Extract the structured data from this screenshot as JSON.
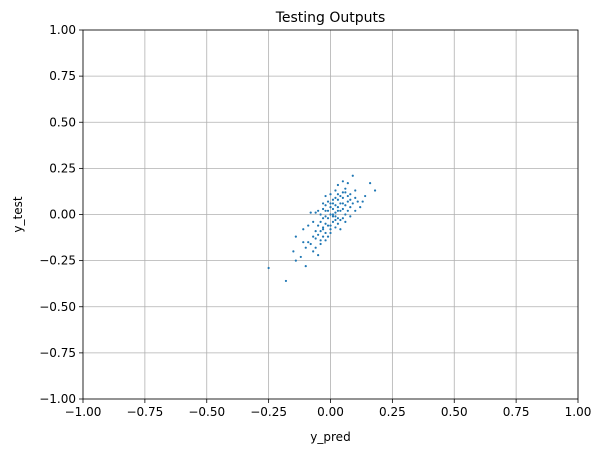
{
  "chart_data": {
    "type": "scatter",
    "title": "Testing Outputs",
    "xlabel": "y_pred",
    "ylabel": "y_test",
    "xlim": [
      -1.0,
      1.0
    ],
    "ylim": [
      -1.0,
      1.0
    ],
    "xticks": [
      -1.0,
      -0.75,
      -0.5,
      -0.25,
      0.0,
      0.25,
      0.5,
      0.75,
      1.0
    ],
    "yticks": [
      -1.0,
      -0.75,
      -0.5,
      -0.25,
      0.0,
      0.25,
      0.5,
      0.75,
      1.0
    ],
    "xtick_labels": [
      "−1.00",
      "−0.75",
      "−0.50",
      "−0.25",
      "0.00",
      "0.25",
      "0.50",
      "0.75",
      "1.00"
    ],
    "ytick_labels": [
      "−1.00",
      "−0.75",
      "−0.50",
      "−0.25",
      "0.00",
      "0.25",
      "0.50",
      "0.75",
      "1.00"
    ],
    "grid": true,
    "marker_color": "#1f77b4",
    "series": [
      {
        "points": [
          [
            -0.25,
            -0.29
          ],
          [
            -0.18,
            -0.36
          ],
          [
            -0.14,
            -0.25
          ],
          [
            -0.12,
            -0.23
          ],
          [
            -0.1,
            -0.28
          ],
          [
            -0.1,
            -0.18
          ],
          [
            -0.09,
            -0.15
          ],
          [
            -0.08,
            -0.16
          ],
          [
            -0.07,
            -0.12
          ],
          [
            -0.07,
            -0.2
          ],
          [
            -0.14,
            -0.12
          ],
          [
            -0.11,
            -0.08
          ],
          [
            -0.09,
            -0.06
          ],
          [
            -0.06,
            -0.18
          ],
          [
            -0.05,
            -0.11
          ],
          [
            -0.05,
            -0.22
          ],
          [
            -0.04,
            -0.09
          ],
          [
            -0.04,
            -0.14
          ],
          [
            -0.03,
            -0.07
          ],
          [
            -0.03,
            -0.12
          ],
          [
            -0.15,
            -0.2
          ],
          [
            -0.11,
            -0.15
          ],
          [
            -0.06,
            0.01
          ],
          [
            -0.08,
            0.01
          ],
          [
            -0.02,
            0.1
          ],
          [
            0.16,
            0.17
          ],
          [
            0.18,
            0.13
          ],
          [
            0.13,
            0.07
          ],
          [
            0.1,
            0.13
          ],
          [
            0.09,
            0.21
          ],
          [
            0.07,
            0.17
          ],
          [
            0.05,
            0.18
          ],
          [
            0.03,
            0.16
          ],
          [
            0.12,
            0.04
          ],
          [
            0.14,
            0.1
          ],
          [
            -0.02,
            -0.05
          ],
          [
            -0.01,
            -0.02
          ],
          [
            0.0,
            0.0
          ],
          [
            0.01,
            0.03
          ],
          [
            0.02,
            0.05
          ],
          [
            0.03,
            0.02
          ],
          [
            0.04,
            0.06
          ],
          [
            0.05,
            0.03
          ],
          [
            -0.02,
            0.02
          ],
          [
            -0.01,
            -0.06
          ],
          [
            0.0,
            -0.08
          ],
          [
            0.01,
            -0.04
          ],
          [
            0.02,
            -0.01
          ],
          [
            0.03,
            0.08
          ],
          [
            0.04,
            0.1
          ],
          [
            0.05,
            0.09
          ],
          [
            0.06,
            0.05
          ],
          [
            0.07,
            0.07
          ],
          [
            0.08,
            0.04
          ],
          [
            0.06,
            0.12
          ],
          [
            -0.03,
            -0.02
          ],
          [
            -0.04,
            -0.04
          ],
          [
            -0.02,
            -0.1
          ],
          [
            -0.01,
            -0.12
          ],
          [
            0.0,
            -0.06
          ],
          [
            0.01,
            0.06
          ],
          [
            0.02,
            0.09
          ],
          [
            0.03,
            0.11
          ],
          [
            0.04,
            0.02
          ],
          [
            0.05,
            -0.02
          ],
          [
            0.06,
            0.0
          ],
          [
            0.07,
            0.02
          ],
          [
            0.08,
            0.08
          ],
          [
            0.09,
            0.06
          ],
          [
            0.1,
            0.09
          ],
          [
            -0.05,
            -0.06
          ],
          [
            -0.06,
            -0.09
          ],
          [
            -0.04,
            0.0
          ],
          [
            -0.03,
            0.03
          ],
          [
            -0.02,
            0.05
          ],
          [
            0.0,
            0.04
          ],
          [
            0.01,
            0.0
          ],
          [
            0.02,
            -0.03
          ],
          [
            0.03,
            -0.05
          ],
          [
            0.04,
            -0.03
          ],
          [
            0.05,
            0.12
          ],
          [
            0.06,
            0.14
          ],
          [
            0.07,
            0.1
          ],
          [
            0.08,
            0.11
          ],
          [
            0.02,
            0.13
          ],
          [
            0.0,
            0.11
          ],
          [
            -0.01,
            0.07
          ],
          [
            -0.03,
            0.06
          ],
          [
            -0.05,
            0.02
          ],
          [
            -0.07,
            -0.04
          ],
          [
            -0.06,
            -0.13
          ],
          [
            -0.04,
            -0.16
          ],
          [
            -0.02,
            -0.14
          ],
          [
            0.0,
            -0.1
          ],
          [
            0.02,
            -0.07
          ],
          [
            0.04,
            -0.08
          ],
          [
            0.06,
            -0.04
          ],
          [
            0.08,
            -0.01
          ],
          [
            0.1,
            0.02
          ],
          [
            0.11,
            0.07
          ],
          [
            -0.01,
            0.02
          ],
          [
            0.01,
            -0.01
          ],
          [
            0.02,
            0.01
          ],
          [
            0.03,
            0.04
          ],
          [
            0.0,
            0.06
          ],
          [
            -0.02,
            -0.01
          ],
          [
            0.01,
            0.08
          ],
          [
            0.03,
            -0.02
          ],
          [
            0.05,
            0.06
          ],
          [
            -0.03,
            -0.08
          ]
        ]
      }
    ]
  }
}
